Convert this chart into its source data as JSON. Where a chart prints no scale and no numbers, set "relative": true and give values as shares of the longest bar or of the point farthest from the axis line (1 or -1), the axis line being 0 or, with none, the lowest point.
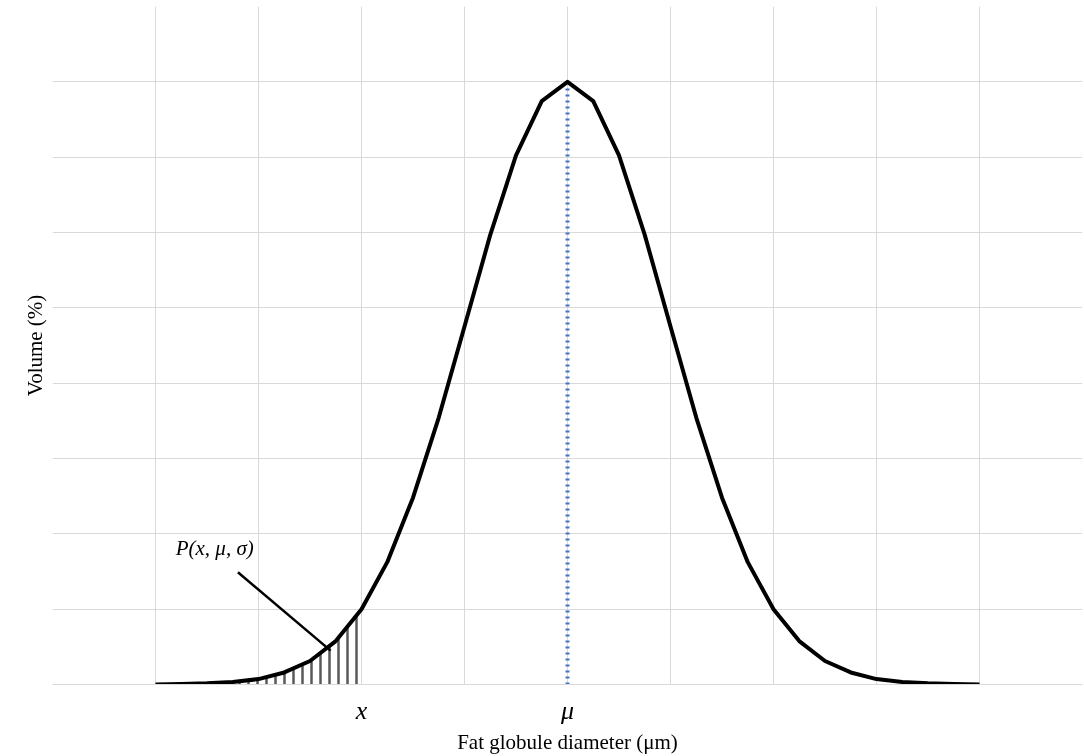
{
  "chart_data": {
    "type": "line",
    "relative": true,
    "xlabel": "Fat globule diameter (μm)",
    "ylabel": "Volume (%)",
    "categories": [
      null,
      null,
      null,
      null,
      null,
      null,
      null,
      null,
      "x",
      null,
      null,
      null,
      null,
      null,
      null,
      null,
      "μ",
      null,
      null,
      null,
      null,
      null,
      null,
      null,
      null,
      null,
      null,
      null,
      null,
      null,
      null,
      null,
      null
    ],
    "grid": true,
    "line_style": "solid",
    "marker": "none",
    "series": [
      {
        "color": "#000000",
        "values": [
          0,
          0.001,
          0.002,
          0.004,
          0.009,
          0.02,
          0.039,
          0.072,
          0.125,
          0.203,
          0.31,
          0.443,
          0.594,
          0.746,
          0.878,
          0.968,
          1,
          0.968,
          0.878,
          0.746,
          0.594,
          0.443,
          0.31,
          0.203,
          0.125,
          0.072,
          0.039,
          0.02,
          0.009,
          0.004,
          0.002,
          0.001,
          0
        ]
      },
      {
        "type": "area",
        "color": "#595959",
        "values": [
          0,
          0.001,
          0.002,
          0.004,
          0.009,
          0.02,
          0.039,
          0.072,
          0.125,
          null,
          null,
          null,
          null,
          null,
          null,
          null,
          null,
          null,
          null,
          null,
          null,
          null,
          null,
          null,
          null,
          null,
          null,
          null,
          null,
          null,
          null,
          null,
          null
        ]
      }
    ],
    "ref_lines": [
      {
        "axis": "x",
        "value": "μ",
        "color": "#4472c4",
        "line_style": "dotted"
      }
    ],
    "annotations": [
      "P(x, μ, σ)"
    ]
  }
}
